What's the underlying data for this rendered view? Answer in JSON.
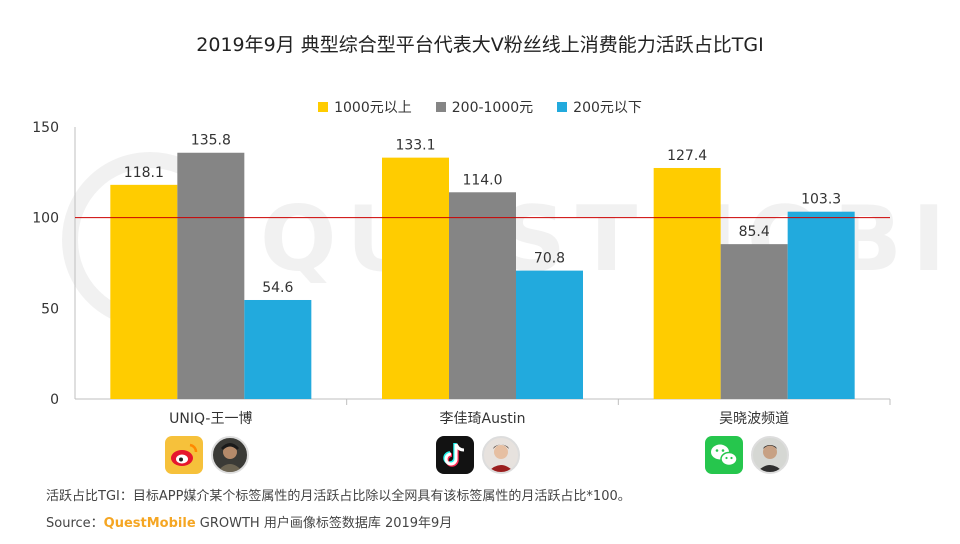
{
  "chart_data": {
    "type": "bar",
    "title": "2019年9月 典型综合型平台代表大V粉丝线上消费能力活跃占比TGI",
    "categories": [
      "UNIQ-王一博",
      "李佳琦Austin",
      "吴晓波频道"
    ],
    "series": [
      {
        "name": "1000元以上",
        "values": [
          118.1,
          133.1,
          127.4
        ],
        "color": "#ffcc00"
      },
      {
        "name": "200-1000元",
        "values": [
          135.8,
          114.0,
          85.4
        ],
        "color": "#858585"
      },
      {
        "name": "200元以下",
        "values": [
          54.6,
          70.8,
          103.3
        ],
        "color": "#22aadd"
      }
    ],
    "y_ticks": [
      0,
      50,
      100,
      150
    ],
    "ylim": [
      0,
      150
    ],
    "reference_line": {
      "value": 100,
      "color": "#cc0000"
    },
    "xlabel": "",
    "ylabel": "",
    "legend_position": "top"
  },
  "platform_icons": [
    "weibo-icon",
    "douyin-icon",
    "wechat-icon"
  ],
  "watermark": "QUESTMOBILE",
  "footer": {
    "note": "活跃占比TGI：目标APP媒介某个标签属性的月活跃占比除以全网具有该标签属性的月活跃占比*100。",
    "source_label": "Source：",
    "source_brand": "QuestMobile",
    "source_rest": " GROWTH 用户画像标签数据库 2019年9月"
  }
}
